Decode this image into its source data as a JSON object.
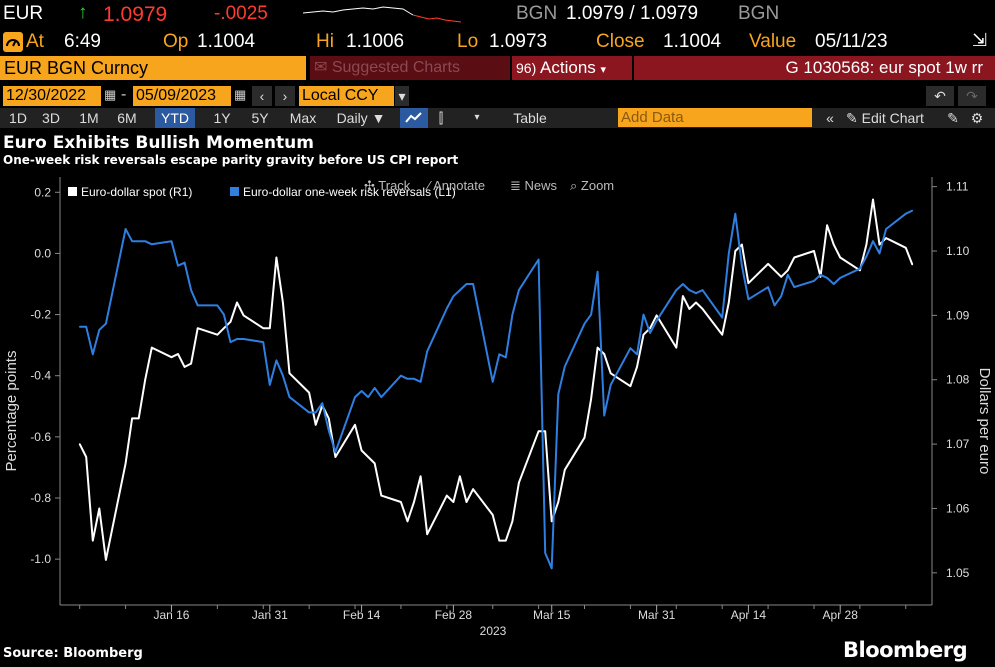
{
  "quote": {
    "symbol": "EUR",
    "arrow": "↑",
    "price": "1.0979",
    "change": "-.0025",
    "source": "BGN",
    "bid_ask": "1.0979 / 1.0979",
    "source2": "BGN"
  },
  "stats": {
    "at_label": "At",
    "time": "6:49",
    "open_label": "Op",
    "open": "1.1004",
    "high_label": "Hi",
    "high": "1.1006",
    "low_label": "Lo",
    "low": "1.0973",
    "close_label": "Close",
    "close": "1.1004",
    "value_label": "Value",
    "value_date": "05/11/23"
  },
  "toolbar": {
    "ticker": "EUR BGN Curncy",
    "suggested": "Suggested Charts",
    "actions_label": "Actions",
    "chart_id": "G 1030568: eur spot 1w rr"
  },
  "dates": {
    "start": "12/30/2022",
    "separator": "-",
    "end": "05/09/2023",
    "currency": "Local CCY"
  },
  "periods": [
    "1D",
    "3D",
    "1M",
    "6M",
    "YTD",
    "1Y",
    "5Y",
    "Max"
  ],
  "active_period": "YTD",
  "frequency": "Daily ▼",
  "table_label": "Table",
  "add_data_placeholder": "Add Data",
  "edit_chart_label": "Edit Chart",
  "tools": [
    "Track",
    "Annotate",
    "News",
    "Zoom"
  ],
  "colors": {
    "amber": "#f7a51c",
    "spot_series": "#ffffff",
    "rr_series": "#2f7fe0",
    "action_red": "#8b1620"
  },
  "chart_data": {
    "type": "line",
    "title": "Euro Exhibits Bullish Momentum",
    "subtitle": "One-week risk reversals escape parity gravity before US CPI report",
    "xlabel": "2023",
    "x_ticks": [
      "Jan 16",
      "Jan 31",
      "Feb 14",
      "Feb 28",
      "Mar 15",
      "Mar 31",
      "Apr 14",
      "Apr 28"
    ],
    "left_axis": {
      "label": "Percentage points",
      "range": [
        -1.15,
        0.25
      ],
      "ticks": [
        "0.2",
        "0.0",
        "-0.2",
        "-0.4",
        "-0.6",
        "-0.8",
        "-1.0"
      ]
    },
    "right_axis": {
      "label": "Dollars per euro",
      "range": [
        1.045,
        1.1115
      ],
      "ticks": [
        "1.11",
        "1.10",
        "1.09",
        "1.08",
        "1.07",
        "1.06",
        "1.05"
      ]
    },
    "series": [
      {
        "name": "Euro-dollar spot (R1)",
        "axis": "right",
        "color": "#ffffff",
        "x": [
          "2023-01-02",
          "2023-01-03",
          "2023-01-04",
          "2023-01-05",
          "2023-01-06",
          "2023-01-09",
          "2023-01-10",
          "2023-01-11",
          "2023-01-12",
          "2023-01-13",
          "2023-01-16",
          "2023-01-17",
          "2023-01-18",
          "2023-01-19",
          "2023-01-20",
          "2023-01-23",
          "2023-01-24",
          "2023-01-25",
          "2023-01-26",
          "2023-01-27",
          "2023-01-30",
          "2023-01-31",
          "2023-02-01",
          "2023-02-02",
          "2023-02-03",
          "2023-02-06",
          "2023-02-07",
          "2023-02-08",
          "2023-02-09",
          "2023-02-10",
          "2023-02-13",
          "2023-02-14",
          "2023-02-15",
          "2023-02-16",
          "2023-02-17",
          "2023-02-20",
          "2023-02-21",
          "2023-02-22",
          "2023-02-23",
          "2023-02-24",
          "2023-02-27",
          "2023-02-28",
          "2023-03-01",
          "2023-03-02",
          "2023-03-03",
          "2023-03-06",
          "2023-03-07",
          "2023-03-08",
          "2023-03-09",
          "2023-03-10",
          "2023-03-13",
          "2023-03-14",
          "2023-03-15",
          "2023-03-16",
          "2023-03-17",
          "2023-03-20",
          "2023-03-21",
          "2023-03-22",
          "2023-03-23",
          "2023-03-24",
          "2023-03-27",
          "2023-03-28",
          "2023-03-29",
          "2023-03-30",
          "2023-03-31",
          "2023-04-03",
          "2023-04-04",
          "2023-04-05",
          "2023-04-06",
          "2023-04-07",
          "2023-04-10",
          "2023-04-11",
          "2023-04-12",
          "2023-04-13",
          "2023-04-14",
          "2023-04-17",
          "2023-04-18",
          "2023-04-19",
          "2023-04-20",
          "2023-04-21",
          "2023-04-24",
          "2023-04-25",
          "2023-04-26",
          "2023-04-27",
          "2023-04-28",
          "2023-05-01",
          "2023-05-02",
          "2023-05-03",
          "2023-05-04",
          "2023-05-05",
          "2023-05-08",
          "2023-05-09"
        ],
        "y": [
          1.07,
          1.068,
          1.055,
          1.06,
          1.052,
          1.067,
          1.074,
          1.074,
          1.08,
          1.085,
          1.0835,
          1.084,
          1.082,
          1.0825,
          1.088,
          1.087,
          1.088,
          1.089,
          1.092,
          1.09,
          1.088,
          1.088,
          1.099,
          1.092,
          1.081,
          1.078,
          1.073,
          1.076,
          1.074,
          1.068,
          1.073,
          1.069,
          1.068,
          1.067,
          1.062,
          1.061,
          1.058,
          1.061,
          1.065,
          1.056,
          1.062,
          1.061,
          1.065,
          1.061,
          1.063,
          1.059,
          1.055,
          1.055,
          1.058,
          1.064,
          1.072,
          1.072,
          1.058,
          1.061,
          1.066,
          1.071,
          1.077,
          1.085,
          1.084,
          1.081,
          1.079,
          1.082,
          1.087,
          1.088,
          1.09,
          1.085,
          1.093,
          1.091,
          1.092,
          1.091,
          1.087,
          1.092,
          1.1,
          1.101,
          1.095,
          1.098,
          1.097,
          1.096,
          1.097,
          1.099,
          1.1,
          1.096,
          1.104,
          1.101,
          1.099,
          1.097,
          1.101,
          1.108,
          1.101,
          1.102,
          1.1005,
          1.0979
        ]
      },
      {
        "name": "Euro-dollar one-week risk reversals (L1)",
        "axis": "left",
        "color": "#2f7fe0",
        "x": [
          "2023-01-02",
          "2023-01-03",
          "2023-01-04",
          "2023-01-05",
          "2023-01-06",
          "2023-01-09",
          "2023-01-10",
          "2023-01-11",
          "2023-01-12",
          "2023-01-13",
          "2023-01-16",
          "2023-01-17",
          "2023-01-18",
          "2023-01-19",
          "2023-01-20",
          "2023-01-23",
          "2023-01-24",
          "2023-01-25",
          "2023-01-26",
          "2023-01-27",
          "2023-01-30",
          "2023-01-31",
          "2023-02-01",
          "2023-02-02",
          "2023-02-03",
          "2023-02-06",
          "2023-02-07",
          "2023-02-08",
          "2023-02-09",
          "2023-02-10",
          "2023-02-13",
          "2023-02-14",
          "2023-02-15",
          "2023-02-16",
          "2023-02-17",
          "2023-02-20",
          "2023-02-21",
          "2023-02-22",
          "2023-02-23",
          "2023-02-24",
          "2023-02-27",
          "2023-02-28",
          "2023-03-01",
          "2023-03-02",
          "2023-03-03",
          "2023-03-06",
          "2023-03-07",
          "2023-03-08",
          "2023-03-09",
          "2023-03-10",
          "2023-03-13",
          "2023-03-14",
          "2023-03-15",
          "2023-03-16",
          "2023-03-17",
          "2023-03-20",
          "2023-03-21",
          "2023-03-22",
          "2023-03-23",
          "2023-03-24",
          "2023-03-27",
          "2023-03-28",
          "2023-03-29",
          "2023-03-30",
          "2023-03-31",
          "2023-04-03",
          "2023-04-04",
          "2023-04-05",
          "2023-04-06",
          "2023-04-07",
          "2023-04-10",
          "2023-04-11",
          "2023-04-12",
          "2023-04-13",
          "2023-04-14",
          "2023-04-17",
          "2023-04-18",
          "2023-04-19",
          "2023-04-20",
          "2023-04-21",
          "2023-04-24",
          "2023-04-25",
          "2023-04-26",
          "2023-04-27",
          "2023-04-28",
          "2023-05-01",
          "2023-05-02",
          "2023-05-03",
          "2023-05-04",
          "2023-05-05",
          "2023-05-08",
          "2023-05-09"
        ],
        "y": [
          -0.24,
          -0.24,
          -0.33,
          -0.25,
          -0.23,
          0.08,
          0.04,
          0.04,
          0.04,
          0.03,
          0.04,
          -0.04,
          -0.03,
          -0.12,
          -0.17,
          -0.17,
          -0.2,
          -0.29,
          -0.28,
          -0.28,
          -0.29,
          -0.43,
          -0.35,
          -0.4,
          -0.47,
          -0.52,
          -0.52,
          -0.49,
          -0.58,
          -0.65,
          -0.47,
          -0.45,
          -0.47,
          -0.44,
          -0.47,
          -0.4,
          -0.41,
          -0.41,
          -0.42,
          -0.32,
          -0.18,
          -0.14,
          -0.12,
          -0.1,
          -0.1,
          -0.42,
          -0.33,
          -0.34,
          -0.2,
          -0.12,
          -0.02,
          -0.98,
          -1.03,
          -0.46,
          -0.37,
          -0.23,
          -0.2,
          -0.06,
          -0.53,
          -0.43,
          -0.31,
          -0.33,
          -0.2,
          -0.26,
          -0.22,
          -0.12,
          -0.1,
          -0.12,
          -0.13,
          -0.12,
          -0.21,
          0.0,
          0.13,
          -0.04,
          -0.15,
          -0.11,
          -0.17,
          -0.14,
          -0.07,
          -0.11,
          -0.09,
          -0.07,
          -0.08,
          -0.1,
          -0.08,
          -0.05,
          -0.01,
          0.04,
          0.0,
          0.08,
          0.13,
          0.14
        ]
      }
    ],
    "legend": "top-left",
    "grid": false
  },
  "footer": {
    "source": "Source: Bloomberg",
    "brand": "Bloomberg"
  }
}
